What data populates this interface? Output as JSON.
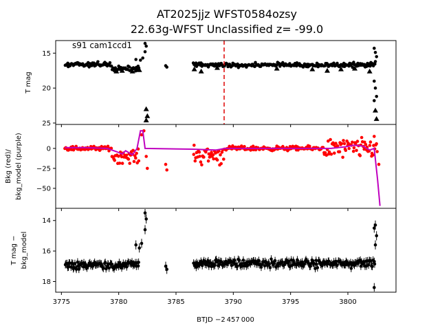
{
  "title_line1": "AT2025jjz  WFST0584ozsy",
  "title_line2": "22.63g-WFST Unclassified z= -99.0",
  "xlabel": "BTJD −2 457 000",
  "x_ticks": [
    "3775",
    "3780",
    "3785",
    "3790",
    "3795",
    "3800"
  ],
  "colors": {
    "raw": "#ff0000",
    "model": "#bf00bf",
    "points": "#000000",
    "marker_line": "#dd0000"
  },
  "chart_data": [
    {
      "type": "scatter",
      "panel": "top",
      "annotation": "s91 cam1ccd1",
      "ylabel": "T mag",
      "y_ticks": [
        "15",
        "20",
        "25"
      ],
      "ylim": [
        25.2,
        13.2
      ],
      "xlim": [
        3774.5,
        3804.2
      ],
      "event_marker_x": 3789.2,
      "segments": [
        {
          "x_start": 3775.3,
          "x_end": 3779.4,
          "median": 16.6,
          "spread": 0.5
        },
        {
          "x_start": 3779.4,
          "x_end": 3781.8,
          "median": 17.2,
          "spread": 0.5
        },
        {
          "x_start": 3786.5,
          "x_end": 3802.4,
          "median": 16.7,
          "spread": 0.45
        }
      ],
      "outliers": [
        {
          "x": 3782.3,
          "y": 13.6
        },
        {
          "x": 3782.4,
          "y": 14.0
        },
        {
          "x": 3782.3,
          "y": 14.8
        },
        {
          "x": 3781.5,
          "y": 15.9
        },
        {
          "x": 3781.9,
          "y": 16.0
        },
        {
          "x": 3782.1,
          "y": 15.7
        },
        {
          "x": 3784.1,
          "y": 16.8
        },
        {
          "x": 3784.2,
          "y": 17.0
        },
        {
          "x": 3802.3,
          "y": 14.3
        },
        {
          "x": 3802.4,
          "y": 14.9
        },
        {
          "x": 3802.5,
          "y": 15.5
        },
        {
          "x": 3802.4,
          "y": 16.2
        },
        {
          "x": 3802.3,
          "y": 19.0
        },
        {
          "x": 3802.4,
          "y": 20.0
        },
        {
          "x": 3802.5,
          "y": 21.2
        },
        {
          "x": 3802.3,
          "y": 21.8
        }
      ],
      "triangles": [
        {
          "x": 3779.8,
          "y": 17.6
        },
        {
          "x": 3780.3,
          "y": 17.5
        },
        {
          "x": 3781.2,
          "y": 17.6
        },
        {
          "x": 3781.8,
          "y": 17.4
        },
        {
          "x": 3782.4,
          "y": 23.0
        },
        {
          "x": 3782.5,
          "y": 24.0
        },
        {
          "x": 3782.4,
          "y": 24.6
        },
        {
          "x": 3786.6,
          "y": 17.3
        },
        {
          "x": 3787.2,
          "y": 17.6
        },
        {
          "x": 3788.6,
          "y": 17.1
        },
        {
          "x": 3793.8,
          "y": 17.2
        },
        {
          "x": 3796.9,
          "y": 17.3
        },
        {
          "x": 3798.2,
          "y": 17.5
        },
        {
          "x": 3799.4,
          "y": 17.3
        },
        {
          "x": 3800.6,
          "y": 17.2
        },
        {
          "x": 3801.9,
          "y": 17.6
        },
        {
          "x": 3802.4,
          "y": 23.2
        },
        {
          "x": 3802.5,
          "y": 24.4
        }
      ]
    },
    {
      "type": "scatter",
      "panel": "middle",
      "ylabel_line1": "Bkg (red)/",
      "ylabel_line2": "bkg_model (purple)",
      "y_ticks": [
        "0",
        "−25",
        "−50"
      ],
      "ylim": [
        -75,
        30
      ],
      "xlim": [
        3774.5,
        3804.2
      ],
      "raw_segments": [
        {
          "x_start": 3775.3,
          "x_end": 3779.4,
          "center": 0,
          "spread": 4
        },
        {
          "x_start": 3779.4,
          "x_end": 3781.8,
          "center": -10,
          "spread": 12
        },
        {
          "x_start": 3786.5,
          "x_end": 3789.2,
          "center": -8,
          "spread": 18
        },
        {
          "x_start": 3789.2,
          "x_end": 3797.8,
          "center": 0,
          "spread": 4
        },
        {
          "x_start": 3797.8,
          "x_end": 3802.6,
          "center": 0,
          "spread": 18
        }
      ],
      "raw_outliers": [
        {
          "x": 3782.0,
          "y": 17
        },
        {
          "x": 3782.2,
          "y": 22
        },
        {
          "x": 3782.4,
          "y": -10
        },
        {
          "x": 3782.5,
          "y": -25
        },
        {
          "x": 3784.1,
          "y": -20
        },
        {
          "x": 3784.2,
          "y": -27
        },
        {
          "x": 3802.7,
          "y": -20
        },
        {
          "x": 3802.3,
          "y": 15
        }
      ],
      "model_curve": [
        {
          "x": 3775.3,
          "y": 1
        },
        {
          "x": 3777.0,
          "y": 1
        },
        {
          "x": 3779.0,
          "y": 0
        },
        {
          "x": 3779.8,
          "y": -4
        },
        {
          "x": 3780.3,
          "y": -7
        },
        {
          "x": 3780.6,
          "y": -3
        },
        {
          "x": 3781.2,
          "y": -8
        },
        {
          "x": 3781.6,
          "y": 0
        },
        {
          "x": 3781.9,
          "y": 22
        },
        {
          "x": 3782.1,
          "y": 22
        },
        {
          "x": 3782.3,
          "y": 0
        },
        {
          "x": 3786.5,
          "y": -1
        },
        {
          "x": 3788.5,
          "y": -2
        },
        {
          "x": 3789.3,
          "y": 0
        },
        {
          "x": 3795.0,
          "y": 0
        },
        {
          "x": 3798.5,
          "y": 0
        },
        {
          "x": 3799.8,
          "y": 2
        },
        {
          "x": 3800.5,
          "y": 4
        },
        {
          "x": 3801.3,
          "y": 3
        },
        {
          "x": 3801.9,
          "y": -2
        },
        {
          "x": 3802.3,
          "y": 0
        },
        {
          "x": 3802.6,
          "y": -40
        },
        {
          "x": 3802.8,
          "y": -72
        }
      ]
    },
    {
      "type": "scatter",
      "panel": "bottom",
      "ylabel_line1": "T mag −",
      "ylabel_line2": "bkg_model",
      "y_ticks": [
        "14",
        "16",
        "18"
      ],
      "ylim": [
        18.7,
        13.2
      ],
      "xlim": [
        3774.5,
        3804.2
      ],
      "segments": [
        {
          "x_start": 3775.3,
          "x_end": 3781.8,
          "median": 16.9,
          "spread": 0.4
        },
        {
          "x_start": 3786.5,
          "x_end": 3802.4,
          "median": 16.8,
          "spread": 0.4
        }
      ],
      "outliers": [
        {
          "x": 3782.3,
          "y": 13.5
        },
        {
          "x": 3782.4,
          "y": 13.9
        },
        {
          "x": 3782.3,
          "y": 14.6
        },
        {
          "x": 3781.5,
          "y": 15.6
        },
        {
          "x": 3781.8,
          "y": 15.8
        },
        {
          "x": 3782.0,
          "y": 15.5
        },
        {
          "x": 3784.1,
          "y": 17.0
        },
        {
          "x": 3784.2,
          "y": 17.2
        },
        {
          "x": 3802.4,
          "y": 14.3
        },
        {
          "x": 3802.3,
          "y": 14.5
        },
        {
          "x": 3802.5,
          "y": 15.0
        },
        {
          "x": 3802.4,
          "y": 15.6
        },
        {
          "x": 3802.3,
          "y": 18.4
        }
      ]
    }
  ]
}
